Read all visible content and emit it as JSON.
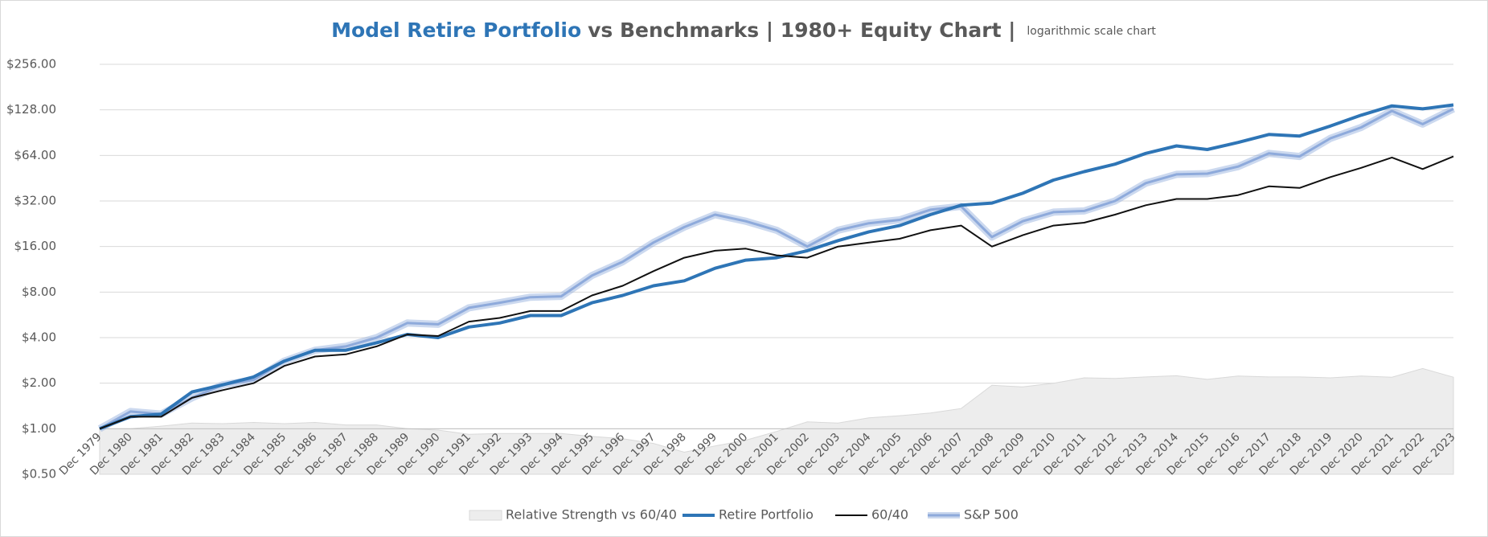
{
  "chart_data": {
    "type": "line",
    "title_highlight": "Model Retire Portfolio",
    "title": "vs Benchmarks  |  1980+ Equity Chart  |",
    "subtitle": "logarithmic scale chart",
    "log_scale": true,
    "grid": true,
    "legend": "bottom",
    "categories": [
      "Dec 1979",
      "Dec 1980",
      "Dec 1981",
      "Dec 1982",
      "Dec 1983",
      "Dec 1984",
      "Dec 1985",
      "Dec 1986",
      "Dec 1987",
      "Dec 1988",
      "Dec 1989",
      "Dec 1990",
      "Dec 1991",
      "Dec 1992",
      "Dec 1993",
      "Dec 1994",
      "Dec 1995",
      "Dec 1996",
      "Dec 1997",
      "Dec 1998",
      "Dec 1999",
      "Dec 2000",
      "Dec 2001",
      "Dec 2002",
      "Dec 2003",
      "Dec 2004",
      "Dec 2005",
      "Dec 2006",
      "Dec 2007",
      "Dec 2008",
      "Dec 2009",
      "Dec 2010",
      "Dec 2011",
      "Dec 2012",
      "Dec 2013",
      "Dec 2014",
      "Dec 2015",
      "Dec 2016",
      "Dec 2017",
      "Dec 2018",
      "Dec 2019",
      "Dec 2020",
      "Dec 2021",
      "Dec 2022",
      "Dec 2023"
    ],
    "ylim": [
      0.5,
      256
    ],
    "yticks": [
      {
        "value": 0.5,
        "label": "$0.50"
      },
      {
        "value": 1,
        "label": "$1.00"
      },
      {
        "value": 2,
        "label": "$2.00"
      },
      {
        "value": 4,
        "label": "$4.00"
      },
      {
        "value": 8,
        "label": "$8.00"
      },
      {
        "value": 16,
        "label": "$16.00"
      },
      {
        "value": 32,
        "label": "$32.00"
      },
      {
        "value": 64,
        "label": "$64.00"
      },
      {
        "value": 128,
        "label": "$128.00"
      },
      {
        "value": 256,
        "label": "$256.00"
      }
    ],
    "series": [
      {
        "name": "Relative Strength vs 60/40",
        "type": "area",
        "color": "#ededed",
        "values": [
          1.0,
          1.0,
          1.04,
          1.09,
          1.08,
          1.1,
          1.08,
          1.1,
          1.06,
          1.06,
          1.0,
          0.98,
          0.92,
          0.93,
          0.93,
          0.93,
          0.89,
          0.86,
          0.8,
          0.7,
          0.77,
          0.84,
          0.96,
          1.11,
          1.09,
          1.18,
          1.22,
          1.27,
          1.36,
          1.94,
          1.89,
          2.0,
          2.17,
          2.15,
          2.2,
          2.24,
          2.12,
          2.23,
          2.2,
          2.2,
          2.17,
          2.23,
          2.19,
          2.5,
          2.19
        ]
      },
      {
        "name": "Retire Portfolio",
        "type": "line",
        "color": "#2e75b6",
        "values": [
          1.0,
          1.2,
          1.25,
          1.75,
          1.95,
          2.2,
          2.8,
          3.3,
          3.3,
          3.7,
          4.2,
          4.0,
          4.7,
          5.0,
          5.6,
          5.6,
          6.8,
          7.6,
          8.8,
          9.5,
          11.5,
          13,
          13.5,
          15,
          17.5,
          20,
          22,
          26,
          30,
          31,
          36,
          44,
          50,
          56,
          66,
          74,
          70,
          78,
          88,
          86,
          100,
          118,
          136,
          130,
          138
        ]
      },
      {
        "name": "60/40",
        "type": "line",
        "color": "#111111",
        "values": [
          1.0,
          1.2,
          1.2,
          1.6,
          1.8,
          2.0,
          2.6,
          3.0,
          3.1,
          3.5,
          4.2,
          4.1,
          5.1,
          5.4,
          6.0,
          6.0,
          7.6,
          8.8,
          11,
          13.5,
          15,
          15.5,
          14,
          13.5,
          16,
          17,
          18,
          20.5,
          22,
          16,
          19,
          22,
          23,
          26,
          30,
          33,
          33,
          35,
          40,
          39,
          46,
          53,
          62,
          52,
          63
        ]
      },
      {
        "name": "S&P 500",
        "type": "glow",
        "color": "#8eaadb",
        "values": [
          1.0,
          1.3,
          1.25,
          1.6,
          1.95,
          2.1,
          2.8,
          3.3,
          3.5,
          4.0,
          5.0,
          4.9,
          6.3,
          6.8,
          7.4,
          7.5,
          10.3,
          12.7,
          17,
          21.5,
          26,
          23.5,
          20.5,
          16,
          20.5,
          22.8,
          24,
          28,
          29.5,
          18.5,
          23.5,
          27,
          27.5,
          32,
          42,
          48,
          48.5,
          54,
          66,
          63,
          83,
          98,
          126,
          103,
          130
        ]
      }
    ]
  }
}
